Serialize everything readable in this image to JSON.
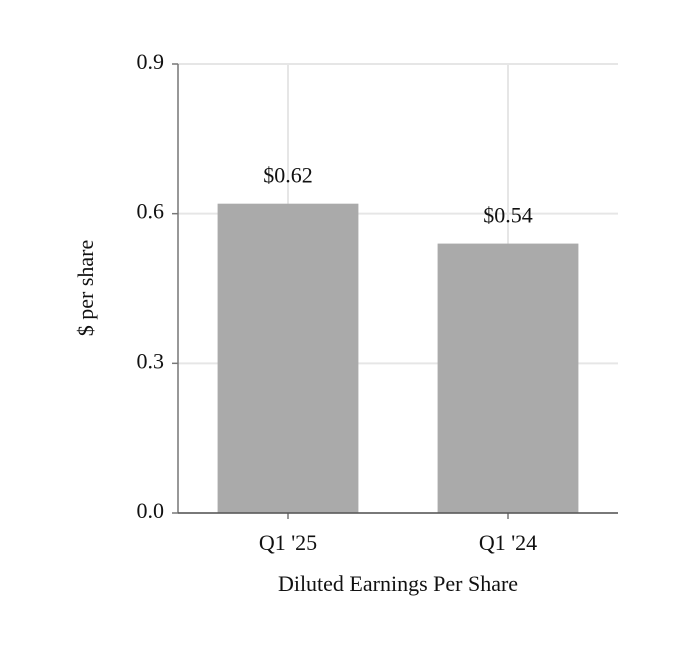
{
  "chart_data": {
    "type": "bar",
    "categories": [
      "Q1 '25",
      "Q1 '24"
    ],
    "values": [
      0.62,
      0.54
    ],
    "value_labels": [
      "$0.62",
      "$0.54"
    ],
    "color": "#aaaaaa",
    "xlabel": "Diluted Earnings Per Share",
    "ylabel": "$ per share",
    "ylim": [
      0,
      0.9
    ],
    "yticks": [
      {
        "value": 0,
        "label": "0.0"
      },
      0.3,
      0.6,
      0.9
    ],
    "grid": true
  }
}
